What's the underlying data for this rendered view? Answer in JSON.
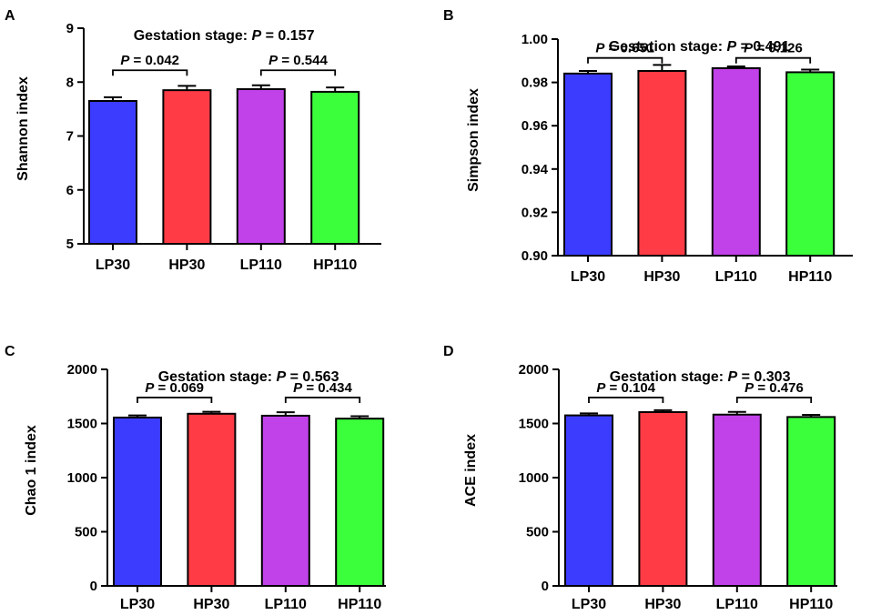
{
  "colors": {
    "LP30": "#3c3cff",
    "HP30": "#ff3c46",
    "LP110": "#c042e8",
    "HP110": "#3cff3c",
    "axis": "#000000"
  },
  "chart_data": [
    {
      "type": "bar",
      "panel": "A",
      "title": {
        "prefix": "Gestation stage: ",
        "p": "P",
        "value": " = 0.157"
      },
      "ylabel": "Shannon index",
      "xlabel": "",
      "categories": [
        "LP30",
        "HP30",
        "LP110",
        "HP110"
      ],
      "values": [
        7.65,
        7.85,
        7.87,
        7.82
      ],
      "errors": [
        0.07,
        0.08,
        0.07,
        0.08
      ],
      "ylim": [
        5,
        9
      ],
      "yticks": [
        5,
        6,
        7,
        8,
        9
      ],
      "ytick_labels": [
        "5",
        "6",
        "7",
        "8",
        "9"
      ],
      "comparisons": [
        {
          "pair": [
            0,
            1
          ],
          "p": "P",
          "text": " = 0.042",
          "bracket_y": 8.22
        },
        {
          "pair": [
            2,
            3
          ],
          "p": "P",
          "text": " = 0.544",
          "bracket_y": 8.22
        }
      ]
    },
    {
      "type": "bar",
      "panel": "B",
      "title": {
        "prefix": "Gestation stage: ",
        "p": "P",
        "value": " = 0.491"
      },
      "ylabel": "Simpson index",
      "xlabel": "",
      "categories": [
        "LP30",
        "HP30",
        "LP110",
        "HP110"
      ],
      "values": [
        0.9841,
        0.9853,
        0.9866,
        0.9847
      ],
      "errors": [
        0.0012,
        0.0028,
        0.0008,
        0.0012
      ],
      "ylim": [
        0.9,
        1.0
      ],
      "yticks": [
        0.9,
        0.92,
        0.94,
        0.96,
        0.98,
        1.0
      ],
      "ytick_labels": [
        "0.90",
        "0.92",
        "0.94",
        "0.96",
        "0.98",
        "1.00"
      ],
      "comparisons": [
        {
          "pair": [
            0,
            1
          ],
          "p": "P",
          "text": " = 0.651",
          "bracket_y": 0.9913
        },
        {
          "pair": [
            2,
            3
          ],
          "p": "P",
          "text": " = 0.126",
          "bracket_y": 0.9913
        }
      ]
    },
    {
      "type": "bar",
      "panel": "C",
      "title": {
        "prefix": "Gestation stage: ",
        "p": "P",
        "value": " = 0.563"
      },
      "ylabel": "Chao 1 index",
      "xlabel": "",
      "categories": [
        "LP30",
        "HP30",
        "LP110",
        "HP110"
      ],
      "values": [
        1555,
        1590,
        1572,
        1545
      ],
      "errors": [
        20,
        18,
        32,
        22
      ],
      "ylim": [
        0,
        2000
      ],
      "yticks": [
        0,
        500,
        1000,
        1500,
        2000
      ],
      "ytick_labels": [
        "0",
        "500",
        "1000",
        "1500",
        "2000"
      ],
      "comparisons": [
        {
          "pair": [
            0,
            1
          ],
          "p": "P",
          "text": " = 0.069",
          "bracket_y": 1740
        },
        {
          "pair": [
            2,
            3
          ],
          "p": "P",
          "text": " = 0.434",
          "bracket_y": 1740
        }
      ]
    },
    {
      "type": "bar",
      "panel": "D",
      "title": {
        "prefix": "Gestation stage: ",
        "p": "P",
        "value": " = 0.303"
      },
      "ylabel": "ACE index",
      "xlabel": "",
      "categories": [
        "LP30",
        "HP30",
        "LP110",
        "HP110"
      ],
      "values": [
        1575,
        1605,
        1582,
        1560
      ],
      "errors": [
        18,
        18,
        25,
        20
      ],
      "ylim": [
        0,
        2000
      ],
      "yticks": [
        0,
        500,
        1000,
        1500,
        2000
      ],
      "ytick_labels": [
        "0",
        "500",
        "1000",
        "1500",
        "2000"
      ],
      "comparisons": [
        {
          "pair": [
            0,
            1
          ],
          "p": "P",
          "text": " = 0.104",
          "bracket_y": 1740
        },
        {
          "pair": [
            2,
            3
          ],
          "p": "P",
          "text": " = 0.476",
          "bracket_y": 1740
        }
      ]
    }
  ]
}
